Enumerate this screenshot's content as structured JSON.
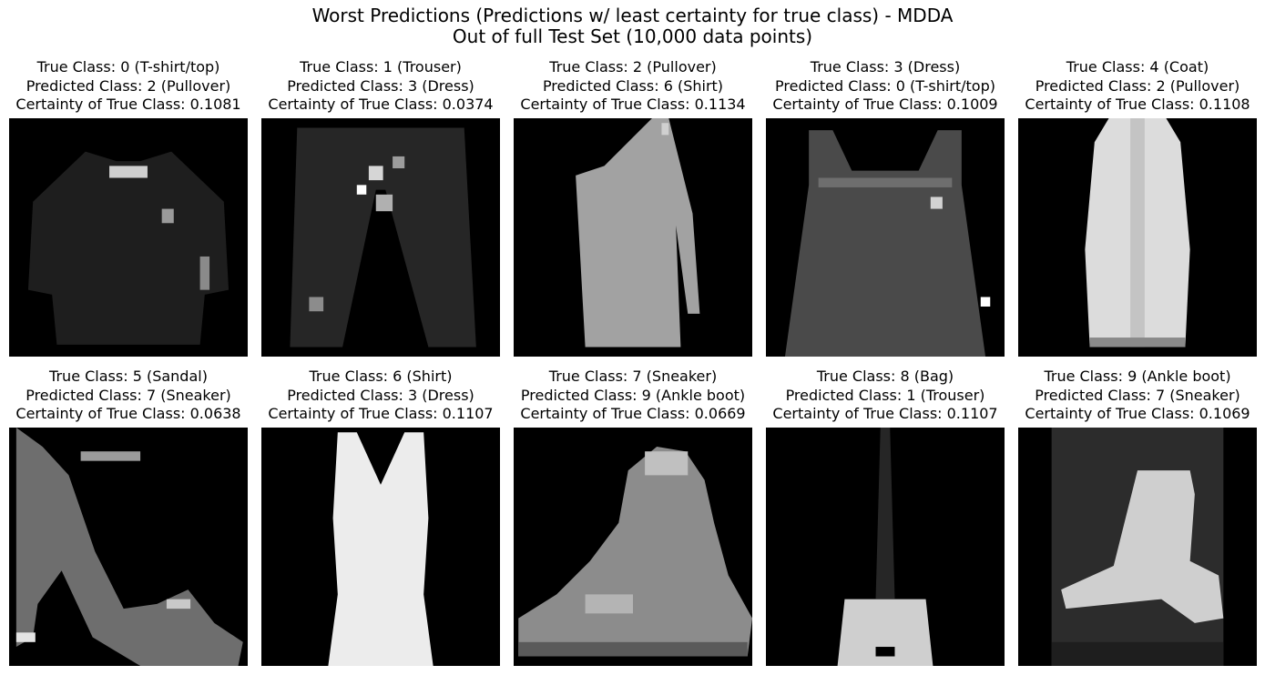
{
  "figure": {
    "title_line1": "Worst Predictions (Predictions w/ least certainty for true class) - MDDA",
    "title_line2": "Out of full Test Set (10,000 data points)"
  },
  "chart_data": {
    "type": "image-grid",
    "grid": [
      2,
      5
    ],
    "colormap": "gray",
    "axes": "off",
    "panels": [
      {
        "true_class": "True Class: 0 (T-shirt/top)",
        "predicted_class": "Predicted Class: 2 (Pullover)",
        "certainty": "Certainty of True Class: 0.1081",
        "certainty_value": 0.1081,
        "image": "t-shirt"
      },
      {
        "true_class": "True Class: 1 (Trouser)",
        "predicted_class": "Predicted Class: 3 (Dress)",
        "certainty": "Certainty of True Class: 0.0374",
        "certainty_value": 0.0374,
        "image": "trouser"
      },
      {
        "true_class": "True Class: 2 (Pullover)",
        "predicted_class": "Predicted Class: 6 (Shirt)",
        "certainty": "Certainty of True Class: 0.1134",
        "certainty_value": 0.1134,
        "image": "pullover"
      },
      {
        "true_class": "True Class: 3 (Dress)",
        "predicted_class": "Predicted Class: 0 (T-shirt/top)",
        "certainty": "Certainty of True Class: 0.1009",
        "certainty_value": 0.1009,
        "image": "dress"
      },
      {
        "true_class": "True Class: 4 (Coat)",
        "predicted_class": "Predicted Class: 2 (Pullover)",
        "certainty": "Certainty of True Class: 0.1108",
        "certainty_value": 0.1108,
        "image": "coat"
      },
      {
        "true_class": "True Class: 5 (Sandal)",
        "predicted_class": "Predicted Class: 7 (Sneaker)",
        "certainty": "Certainty of True Class: 0.0638",
        "certainty_value": 0.0638,
        "image": "sandal"
      },
      {
        "true_class": "True Class: 6 (Shirt)",
        "predicted_class": "Predicted Class: 3 (Dress)",
        "certainty": "Certainty of True Class: 0.1107",
        "certainty_value": 0.1107,
        "image": "shirt"
      },
      {
        "true_class": "True Class: 7 (Sneaker)",
        "predicted_class": "Predicted Class: 9 (Ankle boot)",
        "certainty": "Certainty of True Class: 0.0669",
        "certainty_value": 0.0669,
        "image": "sneaker"
      },
      {
        "true_class": "True Class: 8 (Bag)",
        "predicted_class": "Predicted Class: 1 (Trouser)",
        "certainty": "Certainty of True Class: 0.1107",
        "certainty_value": 0.1107,
        "image": "bag"
      },
      {
        "true_class": "True Class: 9 (Ankle boot)",
        "predicted_class": "Predicted Class: 7 (Sneaker)",
        "certainty": "Certainty of True Class: 0.1069",
        "certainty_value": 0.1069,
        "image": "ankle-boot"
      }
    ]
  }
}
